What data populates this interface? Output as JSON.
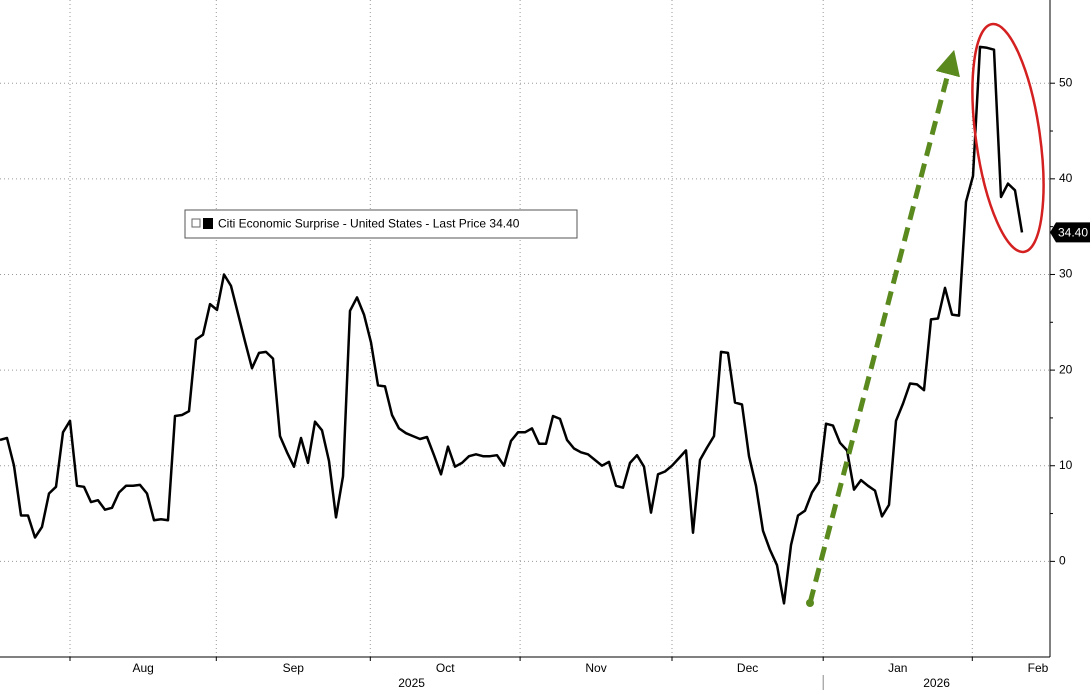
{
  "chart_data": {
    "type": "line",
    "series": [
      {
        "name": "Citi Economic Surprise - United States - Last Price 34.40",
        "color": "#000000",
        "values": [
          12.7,
          12.9,
          10.0,
          4.8,
          4.8,
          2.5,
          3.6,
          7.1,
          7.8,
          13.5,
          14.7,
          7.9,
          7.8,
          6.2,
          6.4,
          5.4,
          5.6,
          7.2,
          7.9,
          7.9,
          8.0,
          7.1,
          4.3,
          4.4,
          4.3,
          15.2,
          15.3,
          15.7,
          23.2,
          23.7,
          26.9,
          26.3,
          30.0,
          28.8,
          25.9,
          23.0,
          20.2,
          21.8,
          21.9,
          21.2,
          13.1,
          11.4,
          9.9,
          12.9,
          10.3,
          14.6,
          13.7,
          10.5,
          4.6,
          8.9,
          26.2,
          27.6,
          25.8,
          22.9,
          18.4,
          18.3,
          15.3,
          13.9,
          13.4,
          13.1,
          12.8,
          13.0,
          11.1,
          9.1,
          12.0,
          9.9,
          10.3,
          11.0,
          11.2,
          11.0,
          11.0,
          11.1,
          10.0,
          12.6,
          13.5,
          13.5,
          13.9,
          12.3,
          12.3,
          15.2,
          14.9,
          12.7,
          11.8,
          11.4,
          11.2,
          10.6,
          10.0,
          10.4,
          7.9,
          7.7,
          10.3,
          11.1,
          9.9,
          5.1,
          9.1,
          9.4,
          10.0,
          10.8,
          11.6,
          3.0,
          10.6,
          11.9,
          13.1,
          21.9,
          21.8,
          16.6,
          16.4,
          11.0,
          7.9,
          3.2,
          1.2,
          -0.4,
          -4.4,
          1.7,
          4.8,
          5.3,
          7.2,
          8.3,
          14.4,
          14.2,
          12.4,
          11.6,
          7.5,
          8.5,
          7.9,
          7.4,
          4.7,
          5.9,
          14.7,
          16.5,
          18.6,
          18.5,
          17.9,
          25.3,
          25.4,
          28.6,
          25.8,
          25.7,
          37.6,
          40.3,
          53.8,
          53.7,
          53.5,
          38.1,
          39.5,
          38.8,
          34.4
        ],
        "value_labels": [
          null,
          null,
          null,
          null,
          null,
          null,
          null,
          null,
          null,
          null,
          null,
          null,
          null,
          null,
          null,
          null,
          null,
          null,
          null,
          null,
          null,
          null,
          null,
          null,
          null,
          null,
          null,
          null,
          null,
          null,
          null,
          null,
          null,
          null,
          null,
          null,
          null,
          null,
          null,
          null,
          null,
          null,
          null,
          null,
          null,
          null,
          null,
          null,
          null,
          null,
          null,
          null,
          null,
          null,
          null,
          null,
          null,
          null,
          null,
          null,
          null,
          null,
          null,
          null,
          null,
          null,
          null,
          null,
          null,
          null,
          null,
          null,
          null,
          null,
          null,
          null,
          null,
          null,
          null,
          null,
          null,
          null,
          null,
          null,
          null,
          null,
          null,
          null,
          null,
          null,
          null,
          null,
          null,
          null,
          null,
          null,
          null,
          null,
          null,
          null,
          null,
          null,
          null,
          null,
          null,
          null,
          null,
          null,
          null,
          null,
          null,
          null,
          null,
          null,
          null,
          null,
          null,
          null,
          null,
          null,
          null,
          null,
          null,
          null,
          null,
          null,
          null,
          null,
          null,
          null,
          null,
          null,
          null,
          null,
          null,
          null,
          null,
          null,
          null,
          null,
          null,
          null,
          null,
          null,
          null,
          null,
          "34.40"
        ]
      }
    ],
    "xlim": [
      0,
      150
    ],
    "xticks": [
      {
        "value": 10,
        "label": "Aug"
      },
      {
        "value": 30.9,
        "label": "Sep"
      },
      {
        "value": 52.9,
        "label": "Oct"
      },
      {
        "value": 74.3,
        "label": "Nov"
      },
      {
        "value": 96,
        "label": "Dec"
      },
      {
        "value": 117.6,
        "label": "Jan"
      },
      {
        "value": 138.9,
        "label": "Feb"
      }
    ],
    "year_ticks": [
      {
        "value": 0,
        "label": "2025"
      },
      {
        "value": 117.6,
        "label": "2026"
      }
    ],
    "ylim": [
      -10,
      58.7
    ],
    "yticks": [
      0,
      10,
      20,
      30,
      40,
      50
    ],
    "grid": true
  }
}
